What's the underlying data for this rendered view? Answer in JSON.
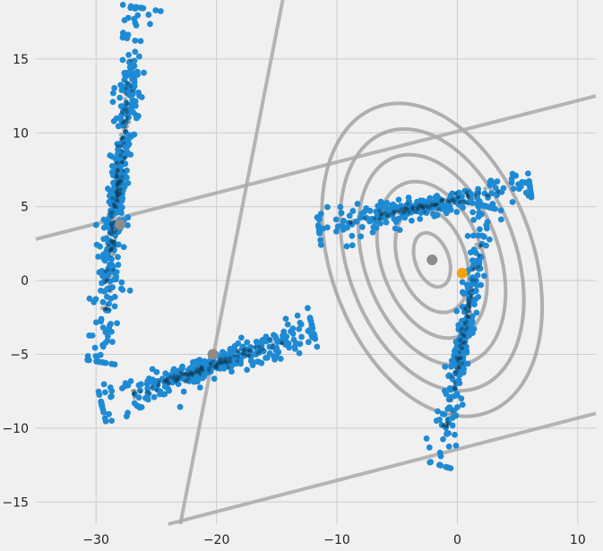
{
  "chart_data": {
    "type": "scatter",
    "title": "",
    "xlabel": "",
    "ylabel": "",
    "xlim": [
      -35,
      11.5
    ],
    "ylim": [
      -16.5,
      19
    ],
    "x_ticks": [
      -30,
      -20,
      -10,
      0,
      10
    ],
    "y_ticks": [
      -15,
      -10,
      -5,
      0,
      5,
      10,
      15
    ],
    "x_tick_labels": [
      "−30",
      "−20",
      "−10",
      "0",
      "10"
    ],
    "y_tick_labels": [
      "−15",
      "−10",
      "−5",
      "0",
      "5",
      "10",
      "15"
    ],
    "grid": true,
    "legend": "none",
    "colors": {
      "points": "#1f8ad4",
      "dense": "#0b2a3a",
      "centroid": "#8c8c8c",
      "highlight": "#f5a30f",
      "boundary": "#a9a9a9",
      "contour": "#9a9a9a",
      "background": "#f0f0f0",
      "grid": "#cbcbcb"
    },
    "clusters": [
      {
        "name": "",
        "shape": "strip",
        "from": [
          -29.8,
          -5.5
        ],
        "to": [
          -26.5,
          18.5
        ],
        "count": 380,
        "spread": 0.35
      },
      {
        "name": "",
        "shape": "strip",
        "from": [
          -29.5,
          -8.5
        ],
        "to": [
          -12,
          -3.3
        ],
        "count": 340,
        "spread": 0.35
      },
      {
        "name": "",
        "shape": "strip",
        "from": [
          -11.5,
          3.5
        ],
        "to": [
          6,
          6.5
        ],
        "count": 260,
        "spread": 0.3
      },
      {
        "name": "",
        "shape": "strip",
        "from": [
          -1.5,
          -12.5
        ],
        "to": [
          2.5,
          5
        ],
        "count": 240,
        "spread": 0.3
      }
    ],
    "centroids": [
      {
        "x": -28,
        "y": 3.8
      },
      {
        "x": -20.3,
        "y": -5.0
      },
      {
        "x": -2.1,
        "y": 1.4
      }
    ],
    "highlight_point": {
      "x": 0.4,
      "y": 0.5
    },
    "contours": {
      "center": [
        -2.1,
        1.4
      ],
      "levels": [
        [
          1.4,
          1.9
        ],
        [
          2.8,
          3.7
        ],
        [
          4.2,
          5.5
        ],
        [
          5.6,
          7.4
        ],
        [
          7.0,
          9.2
        ],
        [
          8.4,
          11.0
        ]
      ],
      "angle_deg": 20
    },
    "boundary_lines": [
      {
        "from": [
          -35,
          2.8
        ],
        "to": [
          11.5,
          12.5
        ]
      },
      {
        "from": [
          -23,
          -16.5
        ],
        "to": [
          -14.5,
          19
        ]
      },
      {
        "from": [
          -24,
          -16.5
        ],
        "to": [
          11.5,
          -9
        ]
      }
    ]
  }
}
